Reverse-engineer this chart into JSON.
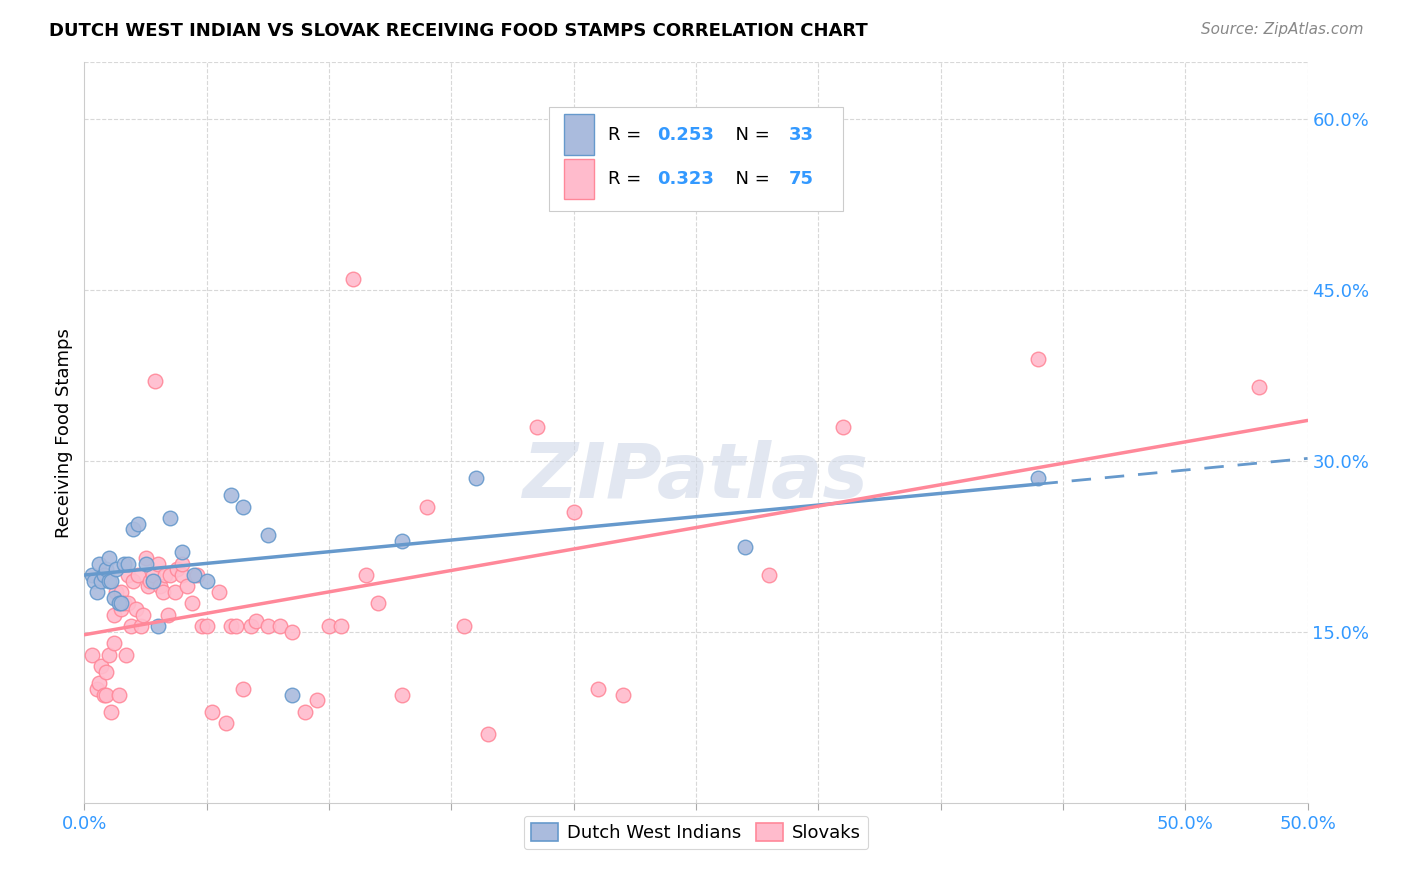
{
  "title": "DUTCH WEST INDIAN VS SLOVAK RECEIVING FOOD STAMPS CORRELATION CHART",
  "source": "Source: ZipAtlas.com",
  "ylabel": "Receiving Food Stamps",
  "xlim": [
    0.0,
    0.5
  ],
  "ylim": [
    0.0,
    0.65
  ],
  "x_ticks": [
    0.0,
    0.05,
    0.1,
    0.15,
    0.2,
    0.25,
    0.3,
    0.35,
    0.4,
    0.45,
    0.5
  ],
  "x_tick_labels_show": {
    "0.0": "0.0%",
    "0.5": "50.0%"
  },
  "y_ticks_right": [
    0.15,
    0.3,
    0.45,
    0.6
  ],
  "y_tick_labels_right": [
    "15.0%",
    "30.0%",
    "45.0%",
    "60.0%"
  ],
  "grid_color": "#d8d8d8",
  "background_color": "#ffffff",
  "blue_color": "#6699cc",
  "pink_color": "#ff8899",
  "blue_fill": "#aabbdd",
  "pink_fill": "#ffbbcc",
  "R_blue": 0.253,
  "N_blue": 33,
  "R_pink": 0.323,
  "N_pink": 75,
  "legend_color": "#3399ff",
  "watermark": "ZIPatlas",
  "dutch_west_indian_x": [
    0.003,
    0.004,
    0.005,
    0.006,
    0.007,
    0.008,
    0.009,
    0.01,
    0.01,
    0.011,
    0.012,
    0.013,
    0.014,
    0.015,
    0.016,
    0.018,
    0.02,
    0.022,
    0.025,
    0.028,
    0.03,
    0.035,
    0.04,
    0.045,
    0.05,
    0.06,
    0.065,
    0.075,
    0.085,
    0.13,
    0.16,
    0.27,
    0.39
  ],
  "dutch_west_indian_y": [
    0.2,
    0.195,
    0.185,
    0.21,
    0.195,
    0.2,
    0.205,
    0.195,
    0.215,
    0.195,
    0.18,
    0.205,
    0.175,
    0.175,
    0.21,
    0.21,
    0.24,
    0.245,
    0.21,
    0.195,
    0.155,
    0.25,
    0.22,
    0.2,
    0.195,
    0.27,
    0.26,
    0.235,
    0.095,
    0.23,
    0.285,
    0.225,
    0.285
  ],
  "slovak_x": [
    0.003,
    0.005,
    0.006,
    0.007,
    0.008,
    0.009,
    0.009,
    0.01,
    0.011,
    0.012,
    0.012,
    0.013,
    0.014,
    0.015,
    0.015,
    0.016,
    0.017,
    0.018,
    0.018,
    0.019,
    0.02,
    0.021,
    0.022,
    0.023,
    0.024,
    0.025,
    0.026,
    0.027,
    0.028,
    0.029,
    0.03,
    0.031,
    0.032,
    0.033,
    0.034,
    0.035,
    0.037,
    0.038,
    0.04,
    0.04,
    0.042,
    0.044,
    0.046,
    0.048,
    0.05,
    0.052,
    0.055,
    0.058,
    0.06,
    0.062,
    0.065,
    0.068,
    0.07,
    0.075,
    0.08,
    0.085,
    0.09,
    0.095,
    0.1,
    0.105,
    0.11,
    0.115,
    0.12,
    0.13,
    0.14,
    0.155,
    0.165,
    0.185,
    0.2,
    0.21,
    0.22,
    0.28,
    0.31,
    0.39,
    0.48
  ],
  "slovak_y": [
    0.13,
    0.1,
    0.105,
    0.12,
    0.095,
    0.115,
    0.095,
    0.13,
    0.08,
    0.165,
    0.14,
    0.185,
    0.095,
    0.185,
    0.17,
    0.175,
    0.13,
    0.175,
    0.2,
    0.155,
    0.195,
    0.17,
    0.2,
    0.155,
    0.165,
    0.215,
    0.19,
    0.195,
    0.2,
    0.37,
    0.21,
    0.19,
    0.185,
    0.2,
    0.165,
    0.2,
    0.185,
    0.205,
    0.2,
    0.21,
    0.19,
    0.175,
    0.2,
    0.155,
    0.155,
    0.08,
    0.185,
    0.07,
    0.155,
    0.155,
    0.1,
    0.155,
    0.16,
    0.155,
    0.155,
    0.15,
    0.08,
    0.09,
    0.155,
    0.155,
    0.46,
    0.2,
    0.175,
    0.095,
    0.26,
    0.155,
    0.06,
    0.33,
    0.255,
    0.1,
    0.095,
    0.2,
    0.33,
    0.39,
    0.365
  ]
}
